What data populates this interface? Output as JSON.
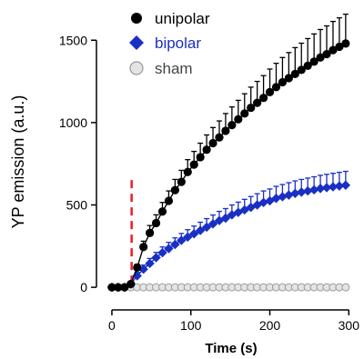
{
  "colors": {
    "unipolar": "#000000",
    "bipolar": "#1a2fc4",
    "sham_fill": "#e4e4e4",
    "sham_edge": "#9a9a9a",
    "stim_marker": "#e8202a",
    "axis": "#000000"
  },
  "chart_data": {
    "type": "line",
    "xlabel": "Time (s)",
    "ylabel": "YP emission (a.u.)",
    "xlim": [
      -8,
      310
    ],
    "ylim": [
      -60,
      1700
    ],
    "xticks": [
      0,
      100,
      200,
      300
    ],
    "yticks": [
      0,
      500,
      1000,
      1500
    ],
    "grid": false,
    "legend_position": "top-left",
    "stimulus_time": 25,
    "series": [
      {
        "name": "unipolar",
        "marker": "circle",
        "x": [
          0,
          8,
          16,
          24,
          32,
          40,
          48,
          56,
          64,
          72,
          80,
          88,
          96,
          104,
          112,
          120,
          128,
          136,
          144,
          152,
          160,
          168,
          176,
          184,
          192,
          200,
          208,
          216,
          224,
          232,
          240,
          248,
          256,
          264,
          272,
          280,
          288,
          296
        ],
        "y": [
          0,
          0,
          0,
          20,
          120,
          245,
          330,
          390,
          460,
          525,
          590,
          640,
          700,
          745,
          790,
          835,
          875,
          910,
          950,
          985,
          1020,
          1055,
          1090,
          1120,
          1150,
          1185,
          1215,
          1245,
          1270,
          1295,
          1320,
          1345,
          1370,
          1395,
          1415,
          1440,
          1460,
          1480
        ],
        "error": [
          0,
          0,
          0,
          10,
          20,
          35,
          45,
          50,
          55,
          60,
          65,
          70,
          75,
          80,
          85,
          90,
          95,
          100,
          105,
          110,
          115,
          120,
          125,
          130,
          135,
          140,
          145,
          150,
          155,
          160,
          162,
          165,
          168,
          170,
          172,
          174,
          176,
          178
        ]
      },
      {
        "name": "bipolar",
        "marker": "diamond",
        "x": [
          0,
          8,
          16,
          24,
          32,
          40,
          48,
          56,
          64,
          72,
          80,
          88,
          96,
          104,
          112,
          120,
          128,
          136,
          144,
          152,
          160,
          168,
          176,
          184,
          192,
          200,
          208,
          216,
          224,
          232,
          240,
          248,
          256,
          264,
          272,
          280,
          288,
          296
        ],
        "y": [
          0,
          0,
          0,
          20,
          70,
          110,
          145,
          180,
          210,
          235,
          260,
          285,
          305,
          325,
          345,
          365,
          385,
          405,
          420,
          440,
          455,
          470,
          485,
          500,
          515,
          525,
          540,
          550,
          560,
          570,
          578,
          585,
          592,
          600,
          605,
          610,
          615,
          620
        ],
        "error": [
          0,
          0,
          0,
          8,
          20,
          25,
          30,
          32,
          35,
          38,
          40,
          42,
          45,
          47,
          50,
          52,
          54,
          56,
          58,
          60,
          62,
          64,
          66,
          68,
          70,
          72,
          73,
          74,
          75,
          76,
          77,
          78,
          79,
          80,
          81,
          82,
          83,
          84
        ]
      },
      {
        "name": "sham",
        "marker": "circle-open",
        "x": [
          0,
          8,
          16,
          24,
          32,
          40,
          48,
          56,
          64,
          72,
          80,
          88,
          96,
          104,
          112,
          120,
          128,
          136,
          144,
          152,
          160,
          168,
          176,
          184,
          192,
          200,
          208,
          216,
          224,
          232,
          240,
          248,
          256,
          264,
          272,
          280,
          288,
          296
        ],
        "y": [
          0,
          0,
          0,
          0,
          0,
          0,
          0,
          0,
          0,
          0,
          0,
          0,
          0,
          0,
          0,
          0,
          0,
          0,
          0,
          0,
          0,
          0,
          0,
          0,
          0,
          0,
          0,
          0,
          0,
          0,
          0,
          0,
          0,
          0,
          0,
          0,
          0,
          0
        ],
        "error": [
          0,
          0,
          0,
          0,
          0,
          0,
          0,
          0,
          0,
          0,
          0,
          0,
          0,
          0,
          0,
          0,
          0,
          0,
          0,
          0,
          0,
          0,
          0,
          0,
          0,
          0,
          0,
          0,
          0,
          0,
          0,
          0,
          0,
          0,
          0,
          0,
          0,
          0
        ]
      }
    ]
  }
}
